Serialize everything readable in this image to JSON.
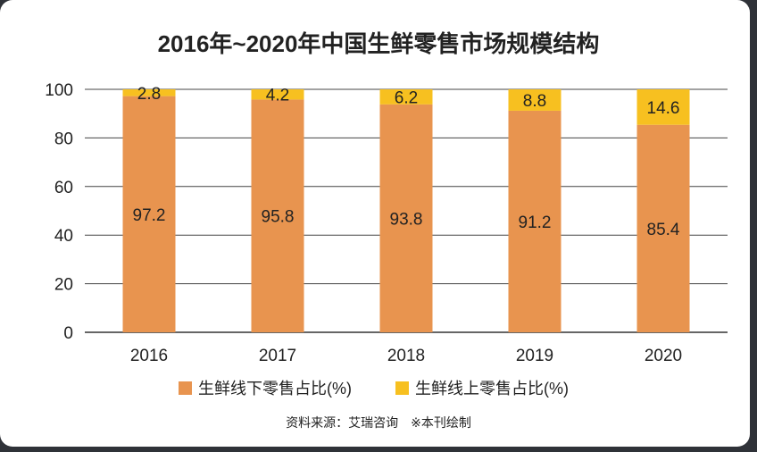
{
  "chart_data": {
    "type": "bar",
    "stacked": true,
    "title": "2016年~2020年中国生鲜零售市场规模结构",
    "categories": [
      "2016",
      "2017",
      "2018",
      "2019",
      "2020"
    ],
    "series": [
      {
        "name": "生鲜线下零售占比(%)",
        "color": "#e8944f",
        "values": [
          97.2,
          95.8,
          93.8,
          91.2,
          85.4
        ]
      },
      {
        "name": "生鲜线上零售占比(%)",
        "color": "#f7c020",
        "values": [
          2.8,
          4.2,
          6.2,
          8.8,
          14.6
        ]
      }
    ],
    "ylim": [
      0,
      100
    ],
    "yticks": [
      "0",
      "20",
      "40",
      "60",
      "80",
      "100"
    ],
    "grid": true,
    "legend_position": "bottom",
    "source": "资料来源：艾瑞咨询　※本刊绘制"
  }
}
